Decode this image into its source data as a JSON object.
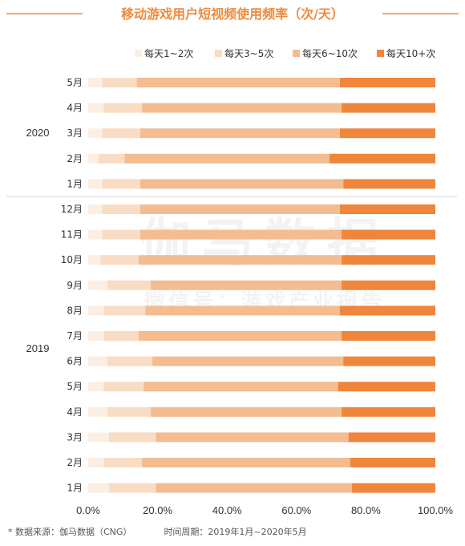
{
  "chart_data": {
    "type": "bar",
    "orientation": "horizontal",
    "stacked": true,
    "title": "移动游戏用户短视频使用频率（次/天）",
    "legend_position": "top",
    "categories": [
      "5月",
      "4月",
      "3月",
      "2月",
      "1月",
      "12月",
      "11月",
      "10月",
      "9月",
      "8月",
      "7月",
      "6月",
      "5月",
      "4月",
      "3月",
      "2月",
      "1月"
    ],
    "year_groups": [
      {
        "label": "2020",
        "start": 0,
        "end": 4
      },
      {
        "label": "2019",
        "start": 5,
        "end": 16
      }
    ],
    "series": [
      {
        "name": "每天1~2次",
        "color": "#fbeee3",
        "values": [
          4.0,
          4.5,
          4.0,
          3.0,
          4.0,
          4.0,
          4.0,
          3.5,
          5.5,
          4.5,
          4.5,
          5.5,
          4.5,
          5.5,
          6.0,
          4.5,
          6.0
        ]
      },
      {
        "name": "每天3~5次",
        "color": "#f8dcc4",
        "values": [
          10.0,
          11.0,
          11.0,
          7.5,
          11.0,
          11.0,
          11.0,
          11.0,
          12.5,
          12.0,
          10.0,
          13.0,
          11.5,
          12.5,
          13.5,
          11.0,
          13.5
        ]
      },
      {
        "name": "每天6~10次",
        "color": "#f3bc91",
        "values": [
          58.5,
          57.5,
          57.5,
          59.0,
          58.5,
          57.5,
          58.0,
          58.5,
          55.0,
          56.0,
          58.5,
          55.0,
          56.0,
          55.0,
          55.5,
          60.0,
          56.5
        ]
      },
      {
        "name": "每天10+次",
        "color": "#ef863b",
        "values": [
          27.5,
          27.0,
          27.5,
          30.5,
          26.5,
          27.5,
          27.0,
          27.0,
          27.0,
          27.5,
          27.0,
          26.5,
          28.0,
          27.0,
          25.0,
          24.5,
          24.0
        ]
      }
    ],
    "xlim": [
      0,
      100
    ],
    "xticks": [
      "0.0%",
      "20.0%",
      "40.0%",
      "60.0%",
      "80.0%",
      "100.0%"
    ],
    "grid": false
  },
  "watermark": {
    "line1": "伽马数据",
    "line2": "微信号：游戏产业报告"
  },
  "footnote": {
    "source": "*  数据来源：伽马数据（CNG）",
    "period": "时间周期：2019年1月~2020年5月"
  }
}
